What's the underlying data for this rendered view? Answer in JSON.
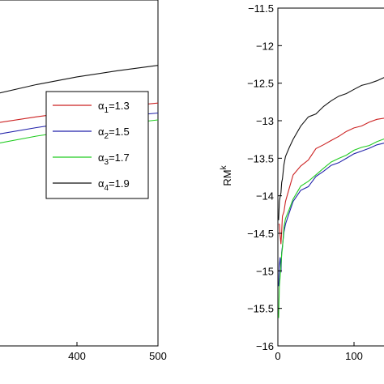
{
  "chart_data": [
    {
      "type": "line",
      "panel": "left",
      "xlim": [
        300,
        500
      ],
      "x_ticks": [
        {
          "value": 400,
          "label": "400"
        },
        {
          "value": 500,
          "label": "500"
        }
      ],
      "y_ticks": [],
      "grid": false,
      "legend_position": "middle-right",
      "series": [
        {
          "name": "α_1=1.3",
          "legend": {
            "sym": "α",
            "sub": "1",
            "rest": "=1.3"
          },
          "color": "#cc2222",
          "x": [
            300,
            350,
            400,
            450,
            500
          ],
          "y": [
            -13.1,
            -13.02,
            -12.95,
            -12.89,
            -12.84
          ]
        },
        {
          "name": "α_2=1.5",
          "legend": {
            "sym": "α",
            "sub": "2",
            "rest": "=1.5"
          },
          "color": "#2222aa",
          "x": [
            300,
            350,
            400,
            450,
            500
          ],
          "y": [
            -13.25,
            -13.16,
            -13.08,
            -13.02,
            -12.97
          ]
        },
        {
          "name": "α_3=1.7",
          "legend": {
            "sym": "α",
            "sub": "3",
            "rest": "=1.7"
          },
          "color": "#22cc22",
          "x": [
            300,
            350,
            400,
            450,
            500
          ],
          "y": [
            -13.37,
            -13.27,
            -13.19,
            -13.12,
            -13.06
          ]
        },
        {
          "name": "α_4=1.9",
          "legend": {
            "sym": "α",
            "sub": "4",
            "rest": "=1.9"
          },
          "color": "#111111",
          "x": [
            300,
            350,
            400,
            450,
            500
          ],
          "y": [
            -12.72,
            -12.6,
            -12.5,
            -12.42,
            -12.35
          ]
        }
      ]
    },
    {
      "type": "line",
      "panel": "right",
      "ylabel": "RM",
      "ylabel_sup": "k",
      "xlim": [
        0,
        150
      ],
      "ylim": [
        -16,
        -11.5
      ],
      "x_ticks": [
        {
          "value": 0,
          "label": "0"
        },
        {
          "value": 100,
          "label": "100"
        }
      ],
      "y_ticks": [
        {
          "value": -11.5,
          "label": "−11.5"
        },
        {
          "value": -12,
          "label": "−12"
        },
        {
          "value": -12.5,
          "label": "−12.5"
        },
        {
          "value": -13,
          "label": "−13"
        },
        {
          "value": -13.5,
          "label": "−13.5"
        },
        {
          "value": -14,
          "label": "−14"
        },
        {
          "value": -14.5,
          "label": "−14.5"
        },
        {
          "value": -15,
          "label": "−15"
        },
        {
          "value": -15.5,
          "label": "−15.5"
        },
        {
          "value": -16,
          "label": "−16"
        }
      ],
      "grid": false,
      "series": [
        {
          "name": "α_1=1.3",
          "color": "#cc2222",
          "x": [
            1,
            2,
            3,
            4,
            5,
            6,
            8,
            10,
            15,
            20,
            30,
            40,
            50,
            60,
            70,
            80,
            90,
            100,
            110,
            120,
            130,
            140,
            150
          ],
          "y": [
            -14.4,
            -14.35,
            -14.55,
            -14.65,
            -14.45,
            -14.3,
            -14.2,
            -14.05,
            -13.9,
            -13.75,
            -13.6,
            -13.5,
            -13.4,
            -13.33,
            -13.26,
            -13.2,
            -13.15,
            -13.1,
            -13.06,
            -13.02,
            -12.99,
            -12.96,
            -12.93
          ]
        },
        {
          "name": "α_2=1.5",
          "color": "#2222aa",
          "x": [
            1,
            2,
            3,
            4,
            5,
            6,
            8,
            10,
            15,
            20,
            30,
            40,
            50,
            60,
            70,
            80,
            90,
            100,
            110,
            120,
            130,
            140,
            150
          ],
          "y": [
            -15.2,
            -14.9,
            -14.85,
            -15.0,
            -14.75,
            -14.7,
            -14.5,
            -14.35,
            -14.2,
            -14.08,
            -13.95,
            -13.85,
            -13.75,
            -13.68,
            -13.6,
            -13.55,
            -13.5,
            -13.45,
            -13.4,
            -13.36,
            -13.33,
            -13.3,
            -13.27
          ]
        },
        {
          "name": "α_3=1.7",
          "color": "#22cc22",
          "x": [
            1,
            2,
            3,
            4,
            5,
            6,
            8,
            10,
            15,
            20,
            30,
            40,
            50,
            60,
            70,
            80,
            90,
            100,
            110,
            120,
            130,
            140,
            150
          ],
          "y": [
            -15.6,
            -15.2,
            -15.1,
            -14.9,
            -14.8,
            -14.7,
            -14.45,
            -14.3,
            -14.15,
            -14.02,
            -13.9,
            -13.8,
            -13.7,
            -13.63,
            -13.56,
            -13.5,
            -13.45,
            -13.4,
            -13.36,
            -13.32,
            -13.28,
            -13.25,
            -13.22
          ]
        },
        {
          "name": "α_4=1.9",
          "color": "#111111",
          "x": [
            1,
            2,
            3,
            4,
            5,
            6,
            8,
            10,
            15,
            20,
            30,
            40,
            50,
            60,
            70,
            80,
            90,
            100,
            110,
            120,
            130,
            140,
            150
          ],
          "y": [
            -14.3,
            -14.1,
            -14.0,
            -13.95,
            -13.85,
            -13.75,
            -13.6,
            -13.5,
            -13.35,
            -13.22,
            -13.08,
            -12.97,
            -12.88,
            -12.8,
            -12.74,
            -12.68,
            -12.63,
            -12.58,
            -12.54,
            -12.5,
            -12.46,
            -12.43,
            -12.4
          ]
        }
      ]
    }
  ]
}
